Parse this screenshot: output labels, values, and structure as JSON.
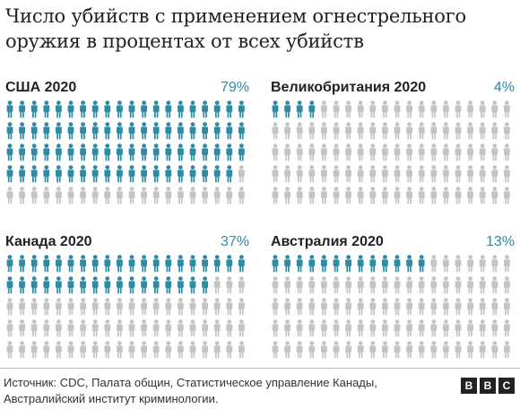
{
  "title_line1": "Число убийств с применением огнестрельного",
  "title_line2": "оружия в процентах от всех убийств",
  "colors": {
    "highlight": "#2d8ba3",
    "base": "#c4c4c4"
  },
  "chart_data": [
    {
      "type": "pictogram",
      "label": "США 2020",
      "value": 79,
      "value_label": "79%",
      "total_icons": 100
    },
    {
      "type": "pictogram",
      "label": "Великобритания 2020",
      "value": 4,
      "value_label": "4%",
      "total_icons": 100
    },
    {
      "type": "pictogram",
      "label": "Канада 2020",
      "value": 37,
      "value_label": "37%",
      "total_icons": 100
    },
    {
      "type": "pictogram",
      "label": "Австралия 2020",
      "value": 13,
      "value_label": "13%",
      "total_icons": 100
    }
  ],
  "source_line1": "Источник: CDC, Палата общин, Статистическое управление Канады,",
  "source_line2": "Австралийский институт криминологии.",
  "logo": {
    "b1": "B",
    "b2": "B",
    "c": "C"
  }
}
